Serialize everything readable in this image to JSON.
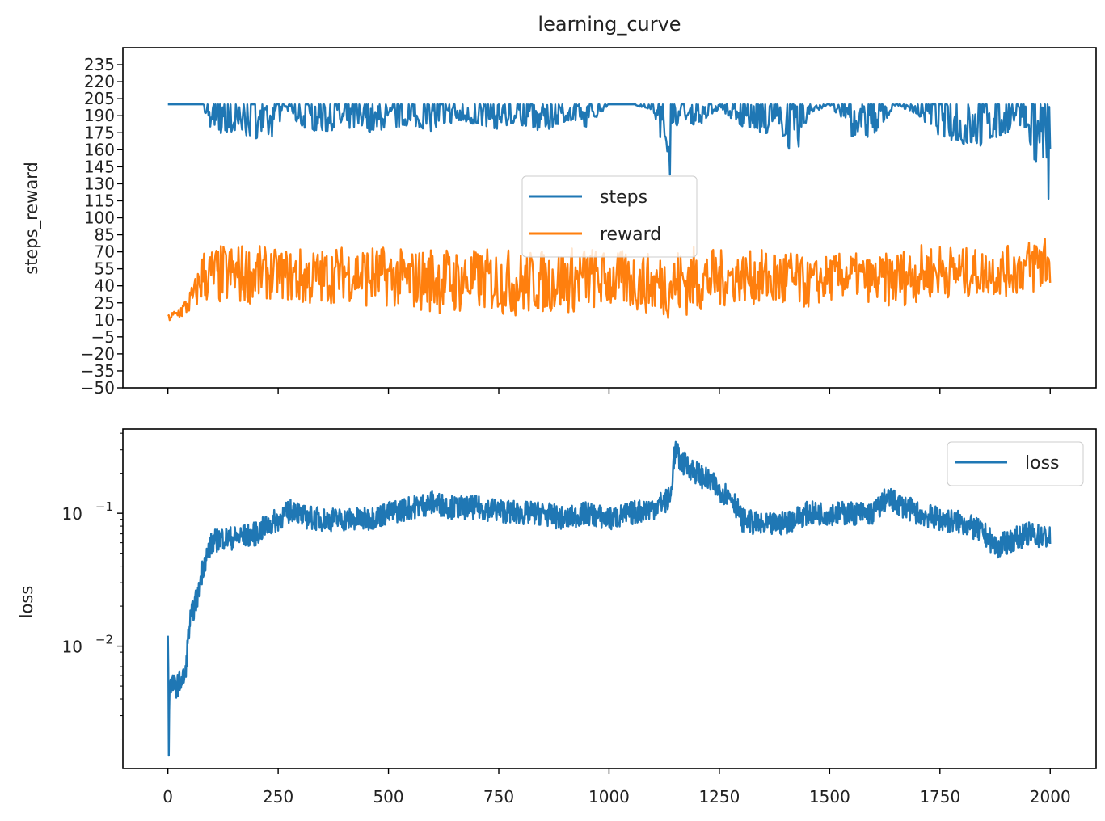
{
  "chart_data": [
    {
      "type": "line",
      "title": "learning_curve",
      "xlabel": "",
      "ylabel": "steps_reward",
      "xlim": [
        -102,
        2104
      ],
      "ylim": [
        -50,
        250
      ],
      "grid": false,
      "legend_position": "center",
      "x_ticks": [
        0,
        250,
        500,
        750,
        1000,
        1250,
        1500,
        1750,
        2000
      ],
      "x_ticklabels_visible": false,
      "y_ticks": [
        235,
        220,
        205,
        190,
        175,
        160,
        145,
        130,
        115,
        100,
        85,
        70,
        55,
        40,
        25,
        10,
        -5,
        -20,
        -35,
        -50
      ],
      "series": [
        {
          "name": "steps",
          "color": "#1f77b4",
          "baseline": 200,
          "x": [
            0,
            80,
            90,
            100,
            150,
            200,
            250,
            260,
            300,
            350,
            400,
            450,
            500,
            550,
            600,
            650,
            700,
            750,
            800,
            850,
            900,
            950,
            1000,
            1050,
            1100,
            1140,
            1150,
            1160,
            1200,
            1250,
            1300,
            1350,
            1400,
            1420,
            1450,
            1500,
            1550,
            1600,
            1650,
            1700,
            1750,
            1800,
            1850,
            1900,
            1950,
            1960,
            1980,
            1995,
            2000
          ],
          "min_envelope": [
            200,
            200,
            180,
            172,
            175,
            170,
            172,
            200,
            180,
            175,
            180,
            175,
            178,
            182,
            176,
            185,
            182,
            178,
            182,
            175,
            185,
            180,
            200,
            200,
            195,
            135,
            175,
            190,
            180,
            196,
            180,
            175,
            172,
            143,
            190,
            200,
            172,
            170,
            200,
            190,
            172,
            165,
            162,
            175,
            180,
            135,
            168,
            100,
            150
          ]
        },
        {
          "name": "reward",
          "color": "#ff7f0e",
          "x": [
            0,
            20,
            40,
            60,
            80,
            100,
            150,
            200,
            250,
            300,
            350,
            400,
            450,
            500,
            550,
            600,
            650,
            700,
            750,
            800,
            850,
            900,
            950,
            1000,
            1050,
            1100,
            1150,
            1200,
            1250,
            1300,
            1350,
            1400,
            1450,
            1500,
            1550,
            1600,
            1650,
            1700,
            1750,
            1800,
            1850,
            1900,
            1950,
            1980,
            2000
          ],
          "upper_envelope": [
            15,
            20,
            30,
            45,
            75,
            75,
            78,
            76,
            72,
            74,
            73,
            76,
            78,
            74,
            72,
            76,
            74,
            72,
            74,
            71,
            72,
            74,
            76,
            70,
            72,
            68,
            74,
            76,
            72,
            70,
            72,
            76,
            62,
            68,
            70,
            65,
            72,
            76,
            78,
            74,
            72,
            75,
            80,
            95,
            90
          ],
          "lower_envelope": [
            8,
            10,
            12,
            18,
            25,
            22,
            22,
            25,
            30,
            20,
            22,
            28,
            20,
            22,
            18,
            16,
            14,
            18,
            15,
            12,
            16,
            15,
            18,
            20,
            18,
            14,
            10,
            16,
            20,
            26,
            22,
            14,
            20,
            26,
            30,
            24,
            20,
            26,
            30,
            28,
            32,
            30,
            34,
            28,
            40
          ]
        }
      ]
    },
    {
      "type": "line",
      "title": "",
      "xlabel": "",
      "ylabel": "loss",
      "yscale": "log",
      "xlim": [
        -102,
        2104
      ],
      "ylim": [
        0.0012,
        0.43
      ],
      "grid": false,
      "legend_position": "upper right",
      "x_ticks": [
        0,
        250,
        500,
        750,
        1000,
        1250,
        1500,
        1750,
        2000
      ],
      "x_ticklabels": [
        "0",
        "250",
        "500",
        "750",
        "1000",
        "1250",
        "1500",
        "1750",
        "2000"
      ],
      "y_ticks": [
        0.1,
        0.01
      ],
      "y_ticklabels": [
        "10^-1",
        "10^-2"
      ],
      "series": [
        {
          "name": "loss",
          "color": "#1f77b4",
          "x": [
            0,
            2,
            4,
            10,
            20,
            40,
            50,
            60,
            70,
            80,
            90,
            100,
            120,
            150,
            200,
            250,
            290,
            300,
            350,
            400,
            450,
            500,
            550,
            600,
            650,
            700,
            750,
            800,
            850,
            900,
            950,
            1000,
            1050,
            1100,
            1140,
            1150,
            1160,
            1200,
            1250,
            1280,
            1300,
            1350,
            1400,
            1450,
            1500,
            1550,
            1600,
            1630,
            1650,
            1700,
            1750,
            1800,
            1850,
            1880,
            1900,
            1950,
            2000
          ],
          "y": [
            0.012,
            0.0015,
            0.005,
            0.005,
            0.005,
            0.006,
            0.015,
            0.02,
            0.025,
            0.04,
            0.05,
            0.06,
            0.065,
            0.065,
            0.07,
            0.09,
            0.11,
            0.095,
            0.09,
            0.09,
            0.09,
            0.1,
            0.11,
            0.12,
            0.11,
            0.11,
            0.105,
            0.1,
            0.1,
            0.09,
            0.1,
            0.09,
            0.1,
            0.11,
            0.13,
            0.3,
            0.25,
            0.2,
            0.15,
            0.13,
            0.09,
            0.08,
            0.085,
            0.1,
            0.1,
            0.1,
            0.1,
            0.13,
            0.12,
            0.1,
            0.09,
            0.085,
            0.07,
            0.055,
            0.06,
            0.07,
            0.065
          ]
        }
      ]
    }
  ],
  "figure": {
    "title": "learning_curve",
    "top_legend": [
      "steps",
      "reward"
    ],
    "bottom_legend": [
      "loss"
    ],
    "top_ylabel": "steps_reward",
    "bottom_ylabel": "loss"
  }
}
